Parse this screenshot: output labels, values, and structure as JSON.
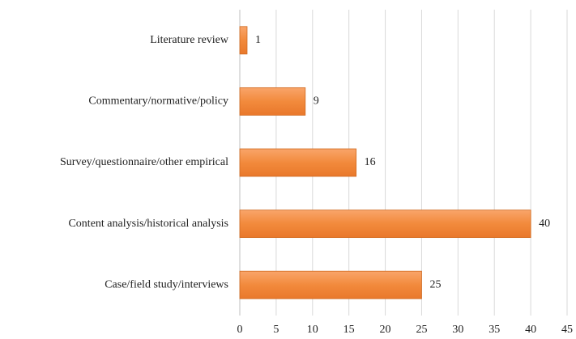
{
  "chart_data": {
    "type": "bar",
    "orientation": "horizontal",
    "categories": [
      "Literature review",
      "Commentary/normative/policy",
      "Survey/questionnaire/other empirical",
      "Content analysis/historical analysis",
      "Case/field study/interviews"
    ],
    "values": [
      1,
      9,
      16,
      40,
      25
    ],
    "color": "#f28a3c",
    "xlim": [
      0,
      45
    ],
    "xticks": [
      0,
      5,
      10,
      15,
      20,
      25,
      30,
      35,
      40,
      45
    ],
    "grid": true,
    "data_labels": true
  }
}
